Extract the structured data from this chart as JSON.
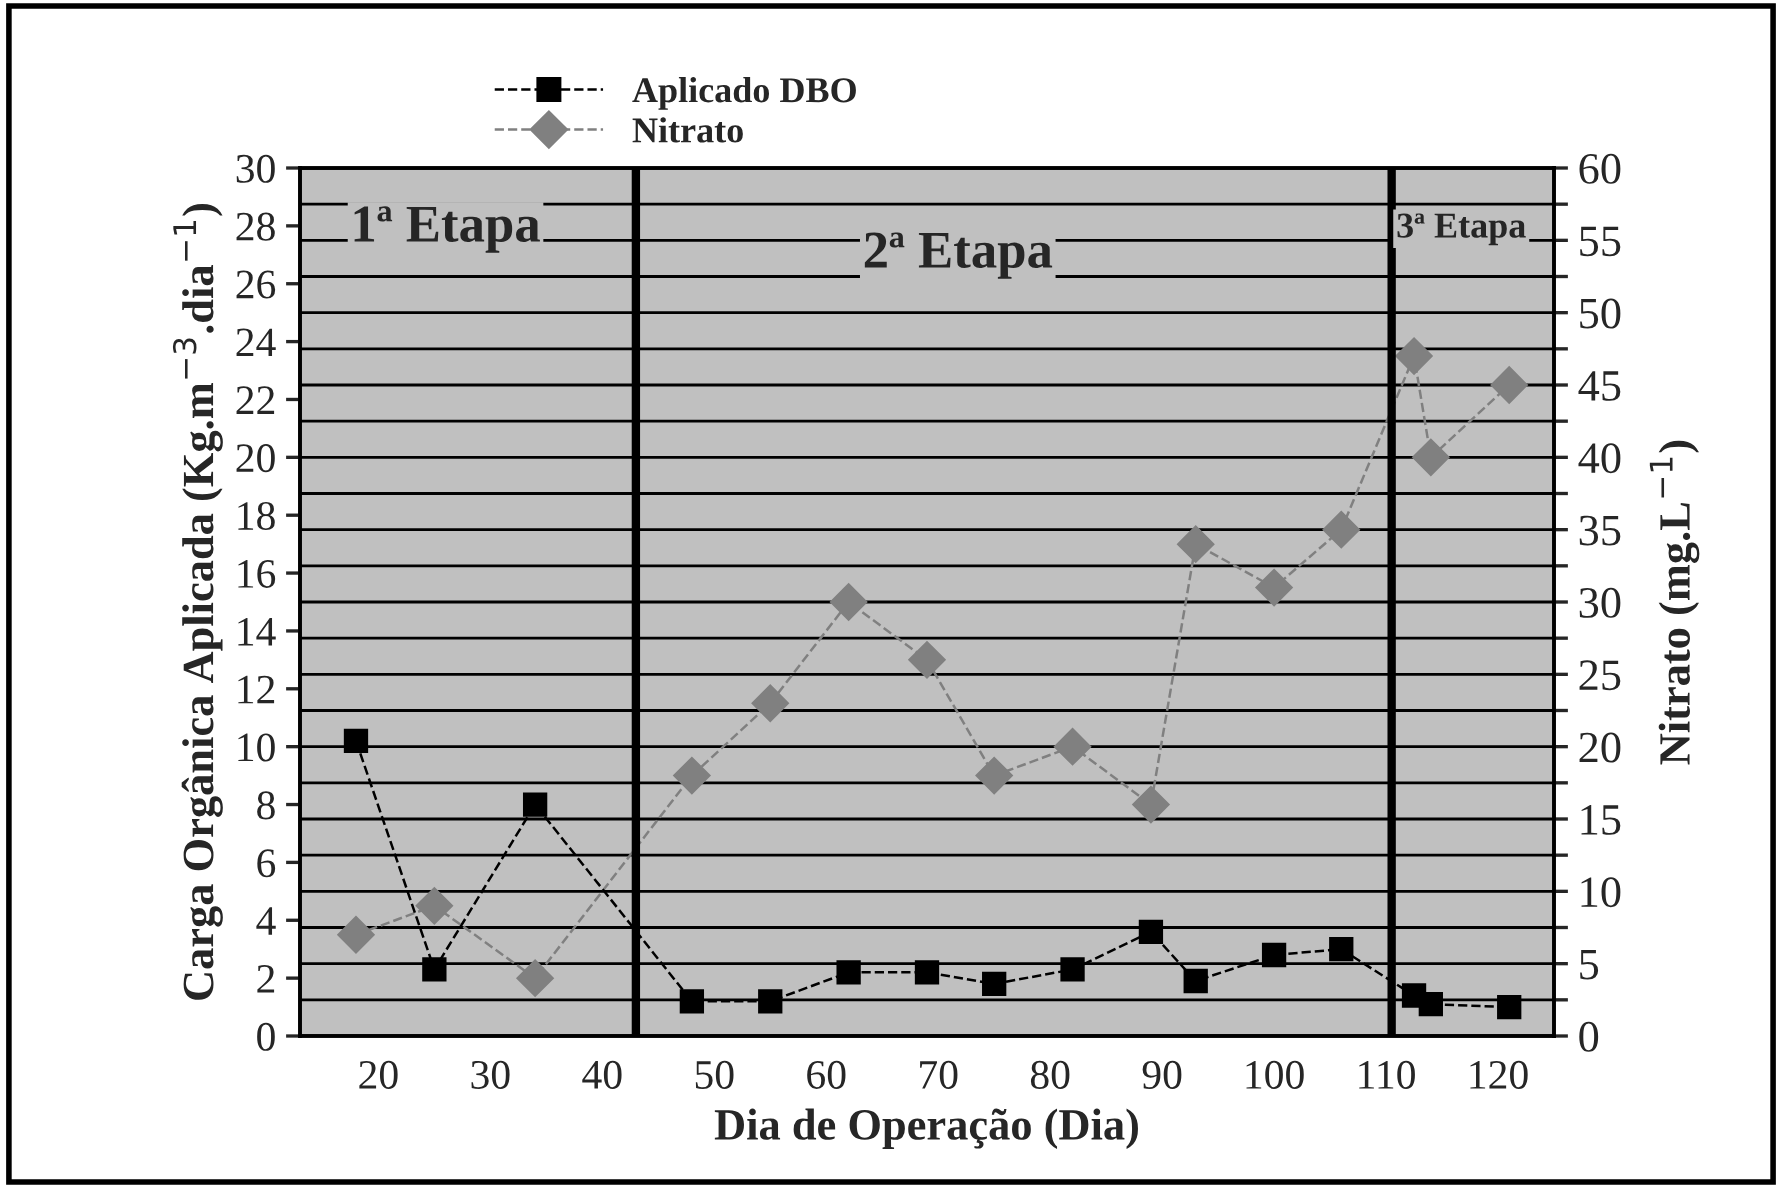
{
  "chart_data": {
    "type": "line",
    "xlabel": "Dia de Operação (Dia)",
    "ylabel": "Carga Orgânica Aplicada (Kg.m$^{−3}$.dia$^{−1}$)",
    "y2label": "Nitrato (mg.L$^{−1}$)",
    "xlim": [
      13,
      125
    ],
    "xticks": [
      20,
      30,
      40,
      50,
      60,
      70,
      80,
      90,
      100,
      110,
      120
    ],
    "ylim": [
      0,
      30
    ],
    "yticks": [
      0,
      2,
      4,
      6,
      8,
      10,
      12,
      14,
      16,
      18,
      20,
      22,
      24,
      26,
      28,
      30
    ],
    "y2lim": [
      0,
      60
    ],
    "y2ticks": [
      0,
      {
        "value": 2.5,
        "label": null
      },
      5,
      {
        "value": 7.5,
        "label": null
      },
      10,
      {
        "value": 12.5,
        "label": null
      },
      15,
      {
        "value": 17.5,
        "label": null
      },
      20,
      {
        "value": 22.5,
        "label": null
      },
      25,
      {
        "value": 27.5,
        "label": null
      },
      30,
      {
        "value": 32.5,
        "label": null
      },
      35,
      {
        "value": 37.5,
        "label": null
      },
      40,
      {
        "value": 42.5,
        "label": null
      },
      45,
      {
        "value": 47.5,
        "label": null
      },
      50,
      {
        "value": 52.5,
        "label": null
      },
      55,
      {
        "value": 57.5,
        "label": null
      },
      60
    ],
    "grid": "y2",
    "legend": "top",
    "line_style": "dashed",
    "series": [
      {
        "name": "Aplicado DBO",
        "color": "#000000",
        "marker": "square",
        "x": [
          18,
          25,
          34,
          48,
          55,
          62,
          69,
          75,
          82,
          89,
          93,
          100,
          106,
          112.5,
          114,
          121
        ],
        "values": [
          10.2,
          2.3,
          8.0,
          1.2,
          1.2,
          2.2,
          2.2,
          1.8,
          2.3,
          3.6,
          1.9,
          2.8,
          3.0,
          1.4,
          1.1,
          1.0
        ]
      },
      {
        "name": "Nitrato",
        "color": "#808080",
        "marker": "diamond",
        "axis": "y2",
        "x": [
          18,
          25,
          34,
          48,
          55,
          62,
          69,
          75,
          82,
          89,
          93,
          100,
          106,
          112.5,
          114,
          121
        ],
        "values": [
          7,
          9,
          4,
          18,
          23,
          30,
          26,
          18,
          20,
          16,
          34,
          31,
          35,
          47,
          40,
          45
        ]
      }
    ],
    "ref_lines": [
      {
        "axis": "x",
        "value": 43,
        "color": "#000000"
      },
      {
        "axis": "x",
        "value": 110.5,
        "color": "#000000"
      }
    ],
    "annotations": [
      "1ª Etapa",
      "2ª Etapa",
      "3ª Etapa"
    ]
  }
}
